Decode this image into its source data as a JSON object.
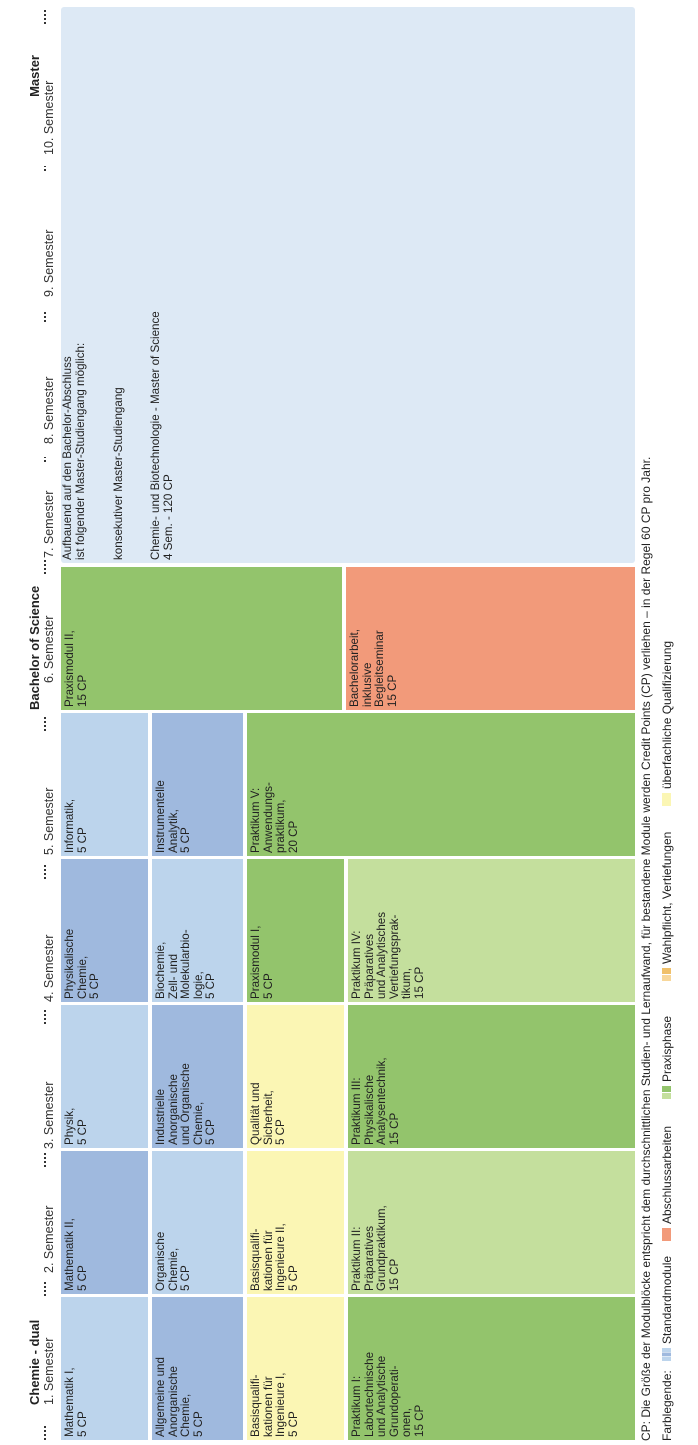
{
  "headers": {
    "left": "Chemie - dual",
    "bachelor": "Bachelor of Science",
    "master": "Master"
  },
  "semesters": [
    "1. Semester",
    "2. Semester",
    "3. Semester",
    "4. Semester",
    "5. Semester",
    "6. Semester",
    "7. Semester",
    "8. Semester",
    "9. Semester",
    "10. Semester"
  ],
  "modules": {
    "m1": "Mathematik I,\n5 CP",
    "m2": "Mathematik II,\n5 CP",
    "m3": "Physik,\n5 CP",
    "m4": "Physikalische\nChemie,\n5 CP",
    "m5": "Informatik,\n5 CP",
    "m6": "Praxismodul II,\n15 CP",
    "r1": "Allgemeine und\nAnorganische\nChemie,\n5 CP",
    "r2": "Organische\nChemie,\n5 CP",
    "r3": "Industrielle\nAnorganische\nund Organische\nChemie,\n5 CP",
    "r4": "Biochemie,\nZell- und\nMolekularbio-\nlogie,\n5 CP",
    "r5": "Instrumentelle\nAnalytik,\n5 CP",
    "q1": "Basisqualifi-\nkationen für\nIngenieure I,\n5 CP",
    "q2": "Basisqualifi-\nkationen für\nIngenieure II,\n5 CP",
    "q3": "Qualität und\nSicherheit,\n5 CP",
    "p4": "Praxismodul I,\n5 CP",
    "p5": "Praktikum V:\nAnwendungs-\npraktikum,\n20 CP",
    "b6": "Bachelorarbeit,\ninklusive\nBegleitseminar\n15 CP",
    "k1": "Praktikum I:\nLabortechnische\nund Analytische\nGrundoperati-\nonen,\n15 CP",
    "k2": "Praktikum II:\nPräparatives\nGrundpraktikum,\n15 CP",
    "k3": "Praktikum III:\nPhysikalische\nAnalysentechnik,\n15 CP",
    "k4": "Praktikum IV:\nPräparatives\nund Analytisches\nVertiefungsprak-\ntikum,\n15 CP"
  },
  "master": {
    "line1": "Aufbauend auf den Bachelor-Abschluss",
    "line2": "ist folgender Master-Studiengang möglich:",
    "line3": "konsekutiver Master-Studiengang",
    "line4": "Chemie- und Biotechnologie - Master of Science",
    "line5": "4 Sem. - 120 CP"
  },
  "footnote": "CP: Die Größe der Modulblöcke entspricht dem durchschnittlichen Studien- und Lernaufwand, für bestandene Module werden Credit Points (CP) verliehen – in der Regel 60 CP pro Jahr.",
  "legend": {
    "title": "Farblegende:",
    "items": [
      "Standardmodule",
      "Abschlussarbeiten",
      "Praxisphase",
      "Wahlpflicht, Vertiefungen",
      "überfachliche Qualifizierung"
    ]
  },
  "colors": {
    "standard": "#bcd4ec",
    "standard_dark": "#9fb9de",
    "qualifizierung": "#fbf6b4",
    "praxis": "#93c46c",
    "praxis_light": "#c4df9d",
    "abschluss": "#f29a7a",
    "master_bg": "#dde9f5"
  }
}
